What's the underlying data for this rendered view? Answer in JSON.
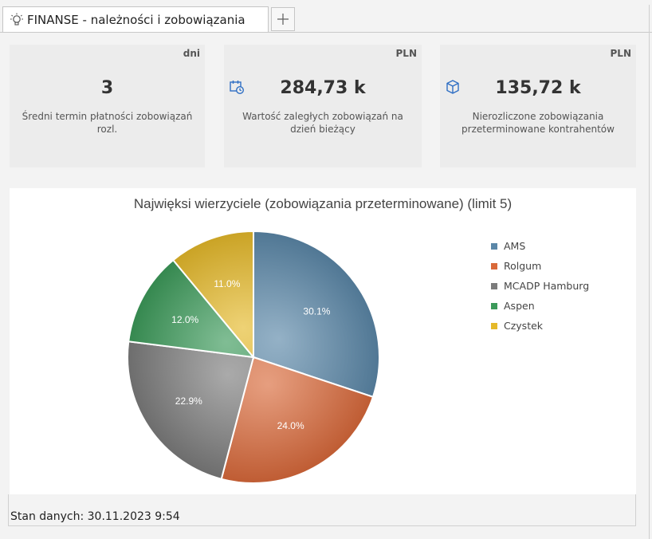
{
  "tab": {
    "title": "FINANSE - należności i zobowiązania",
    "icon": "lightbulb-icon",
    "add_icon": "plus-icon"
  },
  "kpis": [
    {
      "unit": "dni",
      "value": "3",
      "description": "Średni termin płatności zobowiązań rozl."
    },
    {
      "unit": "PLN",
      "value": "284,73 k",
      "description": "Wartość zaległych zobowiązań na dzień bieżący",
      "icon": "calendar-clock-icon"
    },
    {
      "unit": "PLN",
      "value": "135,72 k",
      "description": "Nierozliczone zobowiązania przeterminowane kontrahentów",
      "icon": "box-icon"
    }
  ],
  "chart_data": {
    "type": "pie",
    "title": "Najwięksi wierzyciele (zobowiązania przeterminowane) (limit 5)",
    "labels": [
      "AMS",
      "Rolgum",
      "MCADP Hamburg",
      "Aspen",
      "Czystek"
    ],
    "values": [
      30.1,
      24.0,
      22.9,
      12.0,
      11.0
    ],
    "data_labels": [
      "30.1%",
      "24.0%",
      "22.9%",
      "12.0%",
      "11.0%"
    ],
    "colors": [
      "#5b87a8",
      "#d9693a",
      "#7c7c7c",
      "#3c9a5a",
      "#e5b92a"
    ],
    "legend": "right"
  },
  "footer": {
    "text": "Stan danych: 30.11.2023 9:54"
  }
}
